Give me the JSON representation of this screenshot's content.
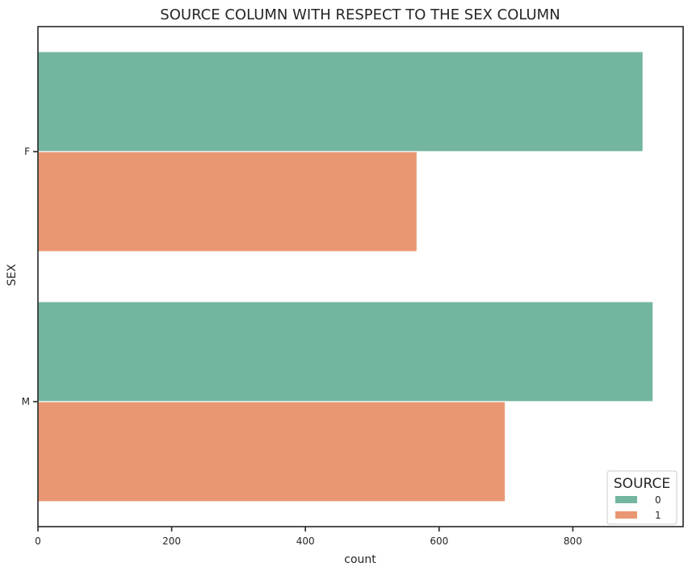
{
  "chart_data": {
    "type": "bar",
    "orientation": "horizontal",
    "title": "SOURCE COLUMN WITH RESPECT TO THE SEX COLUMN",
    "xlabel": "count",
    "ylabel": "SEX",
    "categories": [
      "F",
      "M"
    ],
    "series": [
      {
        "name": "0",
        "values": [
          905,
          920
        ],
        "color": "#73b59f"
      },
      {
        "name": "1",
        "values": [
          567,
          699
        ],
        "color": "#e99773"
      }
    ],
    "xlim": [
      0,
      965
    ],
    "xticks": [
      0,
      200,
      400,
      600,
      800
    ],
    "legend": {
      "title": "SOURCE",
      "placement": "lower-right"
    },
    "grid": false
  }
}
